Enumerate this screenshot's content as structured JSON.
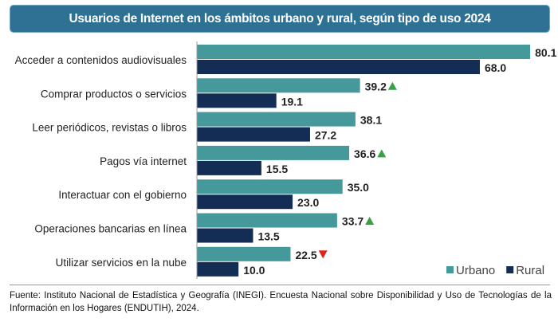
{
  "chart_data": {
    "type": "bar",
    "orientation": "horizontal",
    "title": "Usuarios de Internet en los ámbitos urbano y rural, según tipo de uso 2024",
    "categories": [
      "Acceder a contenidos audiovisuales",
      "Comprar productos o servicios",
      "Leer periódicos, revistas o libros",
      "Pagos vía internet",
      "Interactuar con el gobierno",
      "Operaciones bancarias en línea",
      "Utilizar servicios en la nube"
    ],
    "series": [
      {
        "name": "Urbano",
        "color": "#45999a",
        "values": [
          80.1,
          39.2,
          38.1,
          36.6,
          35.0,
          33.7,
          22.5
        ],
        "labels": [
          "80.1",
          "39.2",
          "38.1",
          "36.6",
          "35.0",
          "33.7",
          "22.5"
        ],
        "markers": [
          "",
          "up",
          "",
          "up",
          "",
          "up",
          "down"
        ]
      },
      {
        "name": "Rural",
        "color": "#142d55",
        "values": [
          68.0,
          19.1,
          27.2,
          15.5,
          23.0,
          13.5,
          10.0
        ],
        "labels": [
          "68.0",
          "19.1",
          "27.2",
          "15.5",
          "23.0",
          "13.5",
          "10.0"
        ]
      }
    ],
    "marker_colors": {
      "up": "#3aa045",
      "down": "#e0231c"
    },
    "xlim": [
      0,
      85
    ],
    "legend": "bottom-right",
    "grid": false
  },
  "footnote": "Fuente: Instituto Nacional de Estadística y Geografía (INEGI). Encuesta Nacional sobre Disponibilidad y Uso de Tecnologías de la Información en los Hogares (ENDUTIH), 2024."
}
